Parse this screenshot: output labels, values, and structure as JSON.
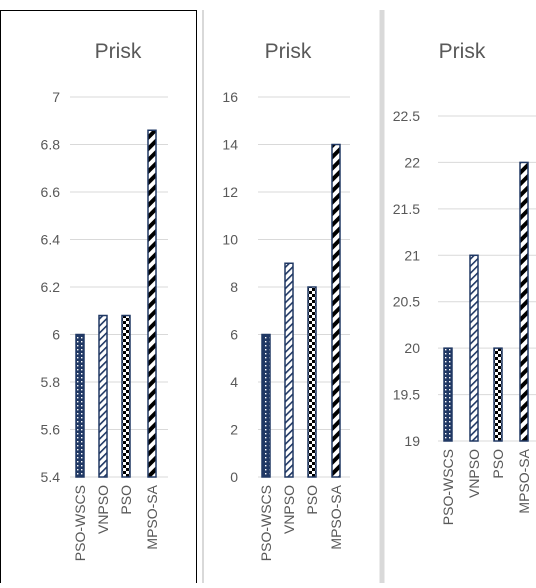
{
  "colors": {
    "bar_fill": "#203864",
    "bar_pattern": "#ffffff",
    "grid": "#d9d9d9",
    "text": "#595959",
    "panel_border": "#000000",
    "divider": "#d9d9d9"
  },
  "chart_data": [
    {
      "type": "bar",
      "title": "Prisk",
      "categories": [
        "PSO-WSCS",
        "VNPSO",
        "PSO",
        "MPSO-SA"
      ],
      "values": [
        6.0,
        6.08,
        6.08,
        6.86
      ],
      "ylim": [
        5.4,
        7
      ],
      "yticks": [
        "5.4",
        "5.6",
        "5.8",
        "6",
        "6.2",
        "6.4",
        "6.6",
        "6.8",
        "7"
      ],
      "grid": true
    },
    {
      "type": "bar",
      "title": "Prisk",
      "categories": [
        "PSO-WSCS",
        "VNPSO",
        "PSO",
        "MPSO-SA"
      ],
      "values": [
        6,
        9,
        8,
        14
      ],
      "ylim": [
        0,
        16
      ],
      "yticks": [
        "0",
        "2",
        "4",
        "6",
        "8",
        "10",
        "12",
        "14",
        "16"
      ],
      "grid": true
    },
    {
      "type": "bar",
      "title": "Prisk",
      "categories": [
        "PSO-WSCS",
        "VNPSO",
        "PSO",
        "MPSO-SA"
      ],
      "values": [
        20,
        21,
        20,
        22
      ],
      "ylim": [
        19,
        22.5
      ],
      "yticks": [
        "19",
        "19.5",
        "20",
        "20.5",
        "21",
        "21.5",
        "22",
        "22.5"
      ],
      "grid": true
    }
  ]
}
